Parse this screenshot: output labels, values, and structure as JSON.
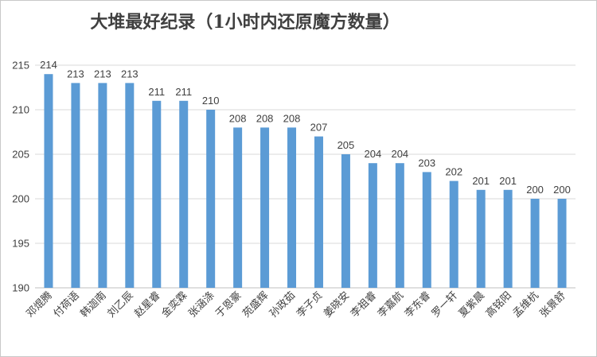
{
  "chart_data": {
    "type": "bar",
    "title": "大堆最好纪录（1小时内还原魔方数量）",
    "xlabel": "",
    "ylabel": "",
    "ylim": [
      190,
      215
    ],
    "yticks": [
      190,
      195,
      200,
      205,
      210,
      215
    ],
    "grid": true,
    "legend": "none",
    "bar_color": "#5b9bd5",
    "categories": [
      "邓焜腾",
      "付荷语",
      "韩迦南",
      "刘乙辰",
      "赵星睿",
      "金奕霖",
      "张涵涤",
      "于恩豪",
      "苑盛辉",
      "孙政茹",
      "李子贞",
      "姜晓安",
      "李祖睿",
      "李嘉航",
      "李东睿",
      "罗一轩",
      "夏紫晨",
      "高铭阳",
      "孟维杭",
      "张景舒"
    ],
    "values": [
      214,
      213,
      213,
      213,
      211,
      211,
      210,
      208,
      208,
      208,
      207,
      205,
      204,
      204,
      203,
      202,
      201,
      201,
      200,
      200
    ]
  }
}
